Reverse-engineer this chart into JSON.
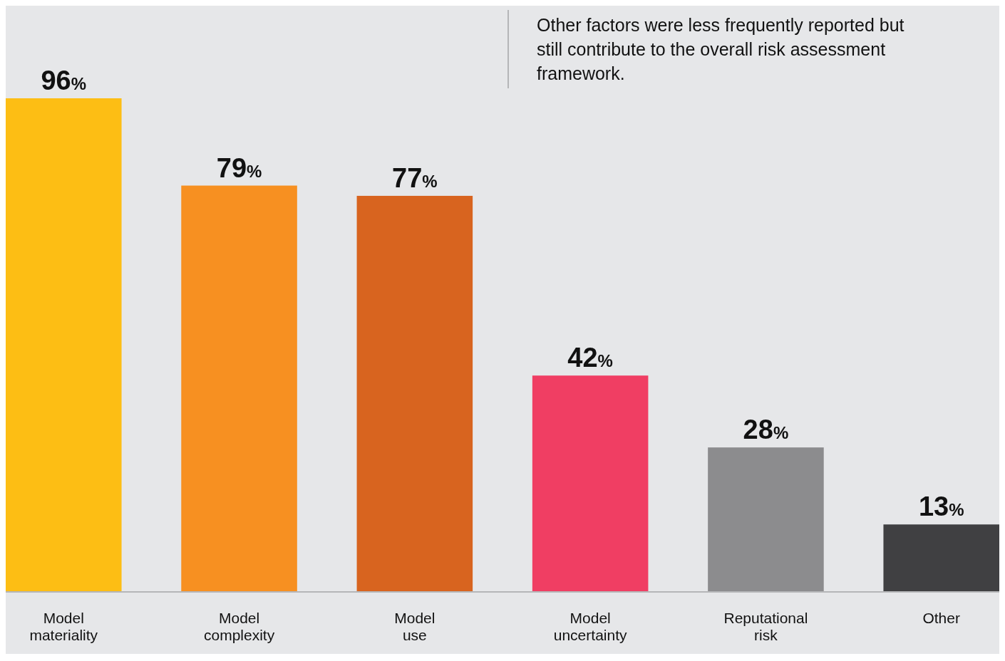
{
  "chart_data": {
    "type": "bar",
    "annotations": [
      "Other factors were less frequently reported but still contribute to the overall risk assessment framework."
    ],
    "categories": [
      "Model materiality",
      "Model complexity",
      "Model use",
      "Model uncertainty",
      "Reputational risk",
      "Other"
    ],
    "values": [
      96,
      79,
      77,
      42,
      28,
      13
    ],
    "colors": [
      "#fdbe14",
      "#f79021",
      "#d8641f",
      "#f03e63",
      "#8c8c8e",
      "#404042"
    ],
    "value_labels": [
      "96%",
      "79%",
      "77%",
      "42%",
      "28%",
      "13%"
    ]
  }
}
